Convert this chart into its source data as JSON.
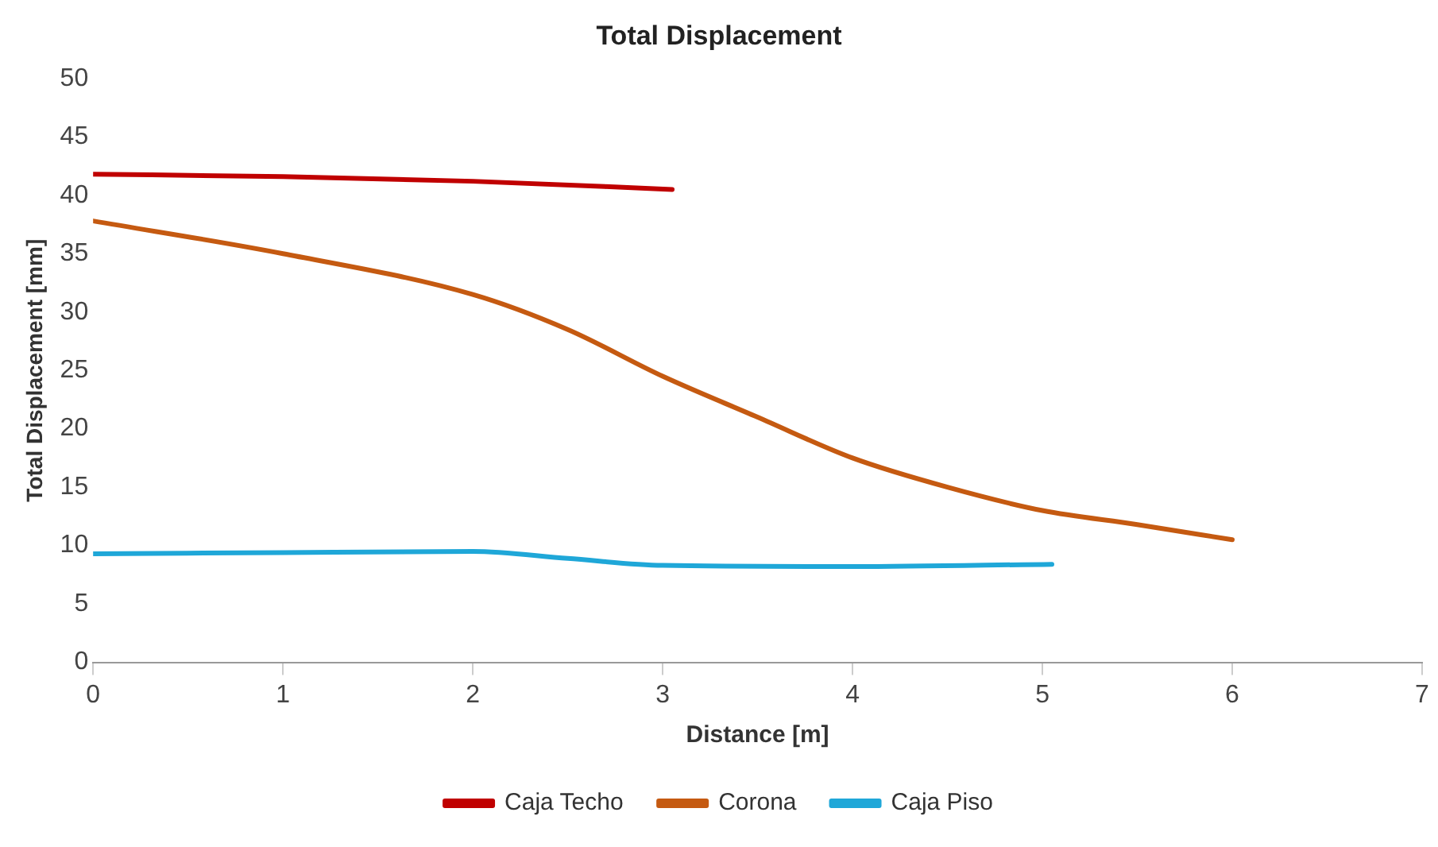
{
  "chart_data": {
    "type": "line",
    "title": "Total Displacement",
    "xlabel": "Distance [m]",
    "ylabel": "Total Displacement [mm]",
    "xlim": [
      0,
      7
    ],
    "xticks": [
      0,
      1,
      2,
      3,
      4,
      5,
      6,
      7
    ],
    "ylim": [
      0,
      50
    ],
    "yticks": [
      0,
      5,
      10,
      15,
      20,
      25,
      30,
      35,
      40,
      45,
      50
    ],
    "grid": false,
    "legend": "bottom",
    "marker": "none",
    "line_style": "solid",
    "series": [
      {
        "name": "Caja Techo",
        "color": "#c00000",
        "x": [
          0,
          1,
          2,
          3.05
        ],
        "values": [
          41.8,
          41.6,
          41.2,
          40.5
        ]
      },
      {
        "name": "Corona",
        "color": "#c55a11",
        "x": [
          0,
          1,
          2,
          2.5,
          3,
          3.5,
          4,
          4.5,
          5,
          5.5,
          6
        ],
        "values": [
          37.8,
          35,
          31.5,
          28.5,
          24.5,
          21,
          17.5,
          15,
          13,
          11.8,
          10.5
        ]
      },
      {
        "name": "Caja Piso",
        "color": "#1fa7d8",
        "x": [
          0,
          1,
          2,
          2.5,
          3,
          4,
          5.05
        ],
        "values": [
          9.3,
          9.4,
          9.5,
          8.9,
          8.3,
          8.2,
          8.4
        ]
      }
    ]
  }
}
